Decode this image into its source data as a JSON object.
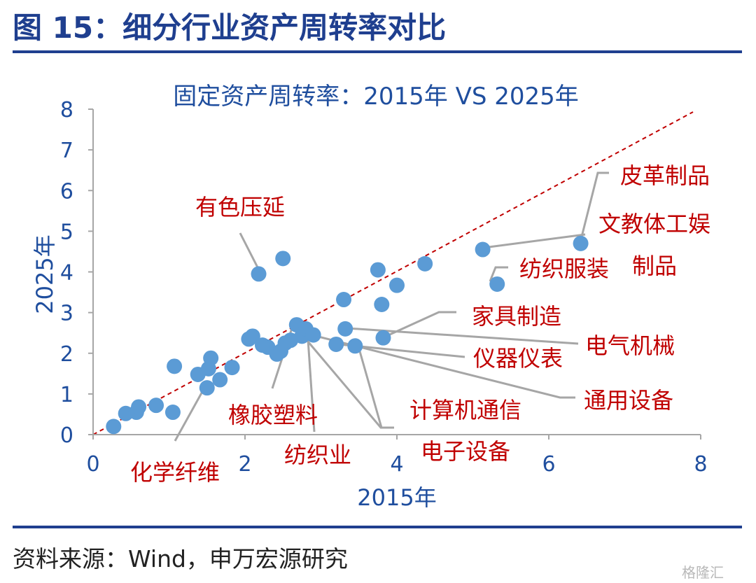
{
  "figure": {
    "title": "图 15：细分行业资产周转率对比",
    "source": "资料来源：Wind，申万宏源研究",
    "watermark": "格隆汇"
  },
  "colors": {
    "brand": "#1f3f8f",
    "axis_text": "#1f4e9e",
    "point": "#5b9bd5",
    "label": "#c00000",
    "leader": "#a6a6a6",
    "diagonal": "#c00000"
  },
  "chart_data": {
    "type": "scatter",
    "title": "固定资产周转率：2015年 VS 2025年",
    "xlabel": "2015年",
    "ylabel": "2025年",
    "xlim": [
      0,
      8
    ],
    "ylim": [
      0,
      8
    ],
    "xticks": [
      0,
      2,
      4,
      6,
      8
    ],
    "yticks": [
      0,
      1,
      2,
      3,
      4,
      5,
      6,
      7,
      8
    ],
    "reference_line": "y = x",
    "points": [
      [
        0.27,
        0.2
      ],
      [
        0.43,
        0.52
      ],
      [
        0.57,
        0.55
      ],
      [
        0.6,
        0.68
      ],
      [
        0.83,
        0.72
      ],
      [
        1.05,
        0.55
      ],
      [
        1.07,
        1.68
      ],
      [
        1.38,
        1.48
      ],
      [
        1.5,
        1.15
      ],
      [
        1.52,
        1.62
      ],
      [
        1.55,
        1.88
      ],
      [
        1.67,
        1.35
      ],
      [
        1.83,
        1.65
      ],
      [
        2.05,
        2.35
      ],
      [
        2.1,
        2.42
      ],
      [
        2.3,
        2.15
      ],
      [
        2.23,
        2.2
      ],
      [
        2.42,
        1.98
      ],
      [
        2.47,
        2.05
      ],
      [
        2.53,
        2.25
      ],
      [
        2.6,
        2.32
      ],
      [
        2.68,
        2.7
      ],
      [
        2.75,
        2.42
      ],
      [
        2.8,
        2.6
      ],
      [
        2.9,
        2.45
      ],
      [
        2.18,
        3.95
      ],
      [
        2.5,
        4.33
      ],
      [
        3.3,
        3.32
      ],
      [
        3.2,
        2.22
      ],
      [
        3.32,
        2.6
      ],
      [
        3.45,
        2.18
      ],
      [
        3.75,
        4.05
      ],
      [
        3.8,
        3.2
      ],
      [
        3.82,
        2.38
      ],
      [
        4.0,
        3.67
      ],
      [
        4.37,
        4.2
      ],
      [
        5.13,
        4.55
      ],
      [
        5.32,
        3.7
      ],
      [
        6.42,
        4.7
      ]
    ],
    "annotations": [
      {
        "text": "有色压延",
        "point": [
          2.18,
          3.95
        ]
      },
      {
        "text": "皮革制品",
        "point": [
          6.42,
          4.7
        ]
      },
      {
        "text": "文教体工娱",
        "point": [
          5.13,
          4.55
        ]
      },
      {
        "text": "制品",
        "point": [
          5.13,
          4.55
        ]
      },
      {
        "text": "纺织服装",
        "point": [
          5.32,
          3.7
        ]
      },
      {
        "text": "家具制造",
        "point": [
          3.82,
          2.38
        ]
      },
      {
        "text": "电气机械",
        "point": [
          3.32,
          2.6
        ]
      },
      {
        "text": "仪器仪表",
        "point": [
          3.2,
          2.22
        ]
      },
      {
        "text": "通用设备",
        "point": [
          2.9,
          2.45
        ]
      },
      {
        "text": "计算机通信",
        "point": [
          2.8,
          2.45
        ]
      },
      {
        "text": "电子设备",
        "point": [
          3.45,
          2.18
        ]
      },
      {
        "text": "纺织业",
        "point": [
          2.75,
          2.4
        ]
      },
      {
        "text": "橡胶塑料",
        "point": [
          2.68,
          2.6
        ]
      },
      {
        "text": "化学纤维",
        "point": [
          1.5,
          1.15
        ]
      }
    ]
  }
}
